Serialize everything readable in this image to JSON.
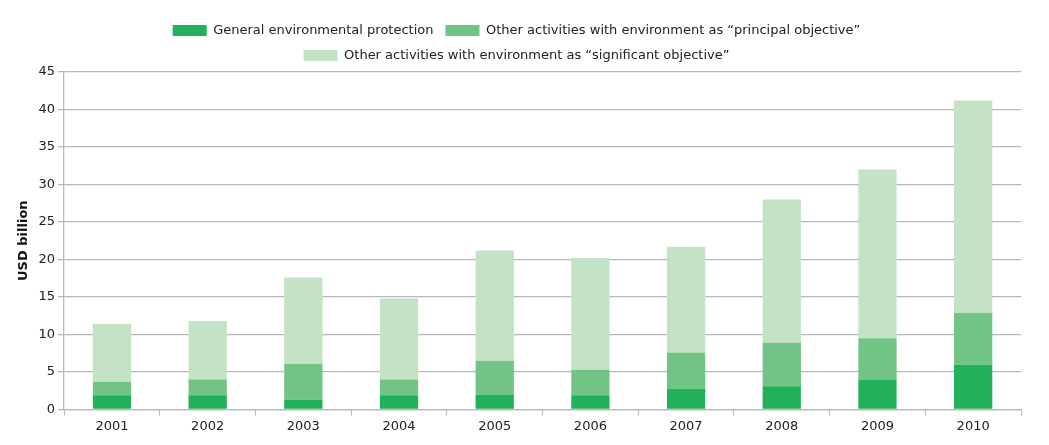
{
  "chart_data": {
    "type": "bar",
    "stacked": true,
    "ylabel": "USD billion",
    "categories": [
      "2001",
      "2002",
      "2003",
      "2004",
      "2005",
      "2006",
      "2007",
      "2008",
      "2009",
      "2010"
    ],
    "series": [
      {
        "name": "General environmental protection",
        "color": "#22b15a",
        "values": [
          1.9,
          1.9,
          1.3,
          1.9,
          2.0,
          1.9,
          2.8,
          3.1,
          4.0,
          6.0
        ]
      },
      {
        "name": "Other activities with environment as “principal objective”",
        "color": "#72c386",
        "values": [
          1.8,
          2.1,
          4.8,
          2.1,
          4.5,
          3.4,
          4.8,
          5.8,
          5.5,
          6.9
        ]
      },
      {
        "name": "Other activities with environment as “significant objective”",
        "color": "#c4e2c6",
        "values": [
          7.7,
          7.8,
          11.5,
          10.8,
          14.7,
          14.9,
          14.1,
          19.1,
          22.5,
          28.3
        ]
      }
    ],
    "ylim": [
      0,
      45
    ],
    "yticks": [
      0,
      5,
      10,
      15,
      20,
      25,
      30,
      35,
      40,
      45
    ],
    "grid": "y",
    "legend": "top"
  }
}
